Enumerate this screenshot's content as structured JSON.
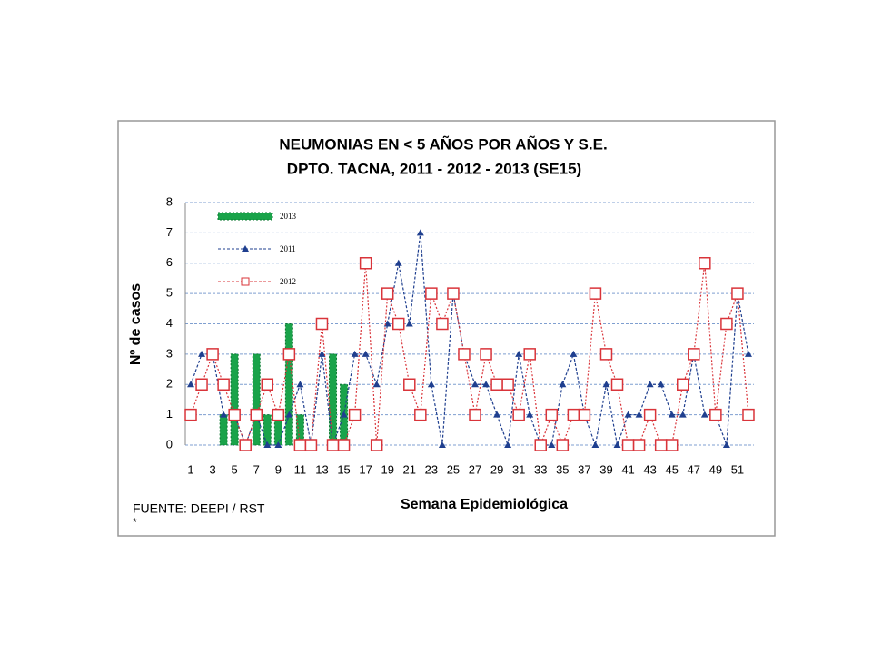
{
  "chart_data": {
    "type": "line",
    "title": "NEUMONIAS  EN  < 5  AÑOS  POR AÑOS Y S.E.",
    "subtitle": "DPTO. TACNA, 2011 - 2012 - 2013 (SE15)",
    "y_label": "Nº de casos",
    "x_label": "Semana Epidemiológica",
    "source": "FUENTE: DEEPI / RST",
    "footnote": "*",
    "categories": [
      1,
      null,
      3,
      null,
      5,
      null,
      7,
      null,
      9,
      null,
      11,
      null,
      13,
      null,
      15,
      null,
      17,
      null,
      19,
      null,
      21,
      null,
      23,
      null,
      25,
      null,
      27,
      null,
      29,
      null,
      31,
      null,
      33,
      null,
      35,
      null,
      37,
      null,
      39,
      null,
      41,
      null,
      43,
      null,
      45,
      null,
      47,
      null,
      49,
      null,
      51,
      null
    ],
    "series": [
      {
        "name": "2013",
        "type": "bar",
        "color": "#1aa34a",
        "values": [
          0,
          0,
          0,
          1,
          3,
          0,
          3,
          1,
          1,
          4,
          1,
          0,
          0,
          3,
          2,
          null,
          null,
          null,
          null,
          null,
          null,
          null,
          null,
          null,
          null,
          null,
          null,
          null,
          null,
          null,
          null,
          null,
          null,
          null,
          null,
          null,
          null,
          null,
          null,
          null,
          null,
          null,
          null,
          null,
          null,
          null,
          null,
          null,
          null,
          null,
          null,
          null
        ]
      },
      {
        "name": "2011",
        "type": "line",
        "marker": "triangle",
        "color": "#1f3f8f",
        "values": [
          2,
          3,
          3,
          1,
          1,
          0,
          1,
          0,
          0,
          1,
          2,
          0,
          3,
          0,
          1,
          3,
          3,
          2,
          4,
          6,
          4,
          7,
          2,
          0,
          5,
          3,
          2,
          2,
          1,
          0,
          3,
          1,
          0,
          0,
          2,
          3,
          1,
          0,
          2,
          0,
          1,
          1,
          2,
          2,
          1,
          1,
          3,
          1,
          1,
          0,
          5,
          3
        ]
      },
      {
        "name": "2012",
        "type": "line",
        "marker": "square",
        "color": "#d9343a",
        "values": [
          1,
          2,
          3,
          2,
          1,
          0,
          1,
          2,
          1,
          3,
          0,
          0,
          4,
          0,
          0,
          1,
          6,
          0,
          5,
          4,
          2,
          1,
          5,
          4,
          5,
          3,
          1,
          3,
          2,
          2,
          1,
          3,
          0,
          1,
          0,
          1,
          1,
          5,
          3,
          2,
          0,
          0,
          1,
          0,
          0,
          2,
          3,
          6,
          1,
          4,
          5,
          1
        ]
      }
    ],
    "ylim": [
      0,
      8
    ],
    "yticks": [
      0,
      1,
      2,
      3,
      4,
      5,
      6,
      7,
      8
    ],
    "grid": true,
    "legend": "top-left"
  }
}
